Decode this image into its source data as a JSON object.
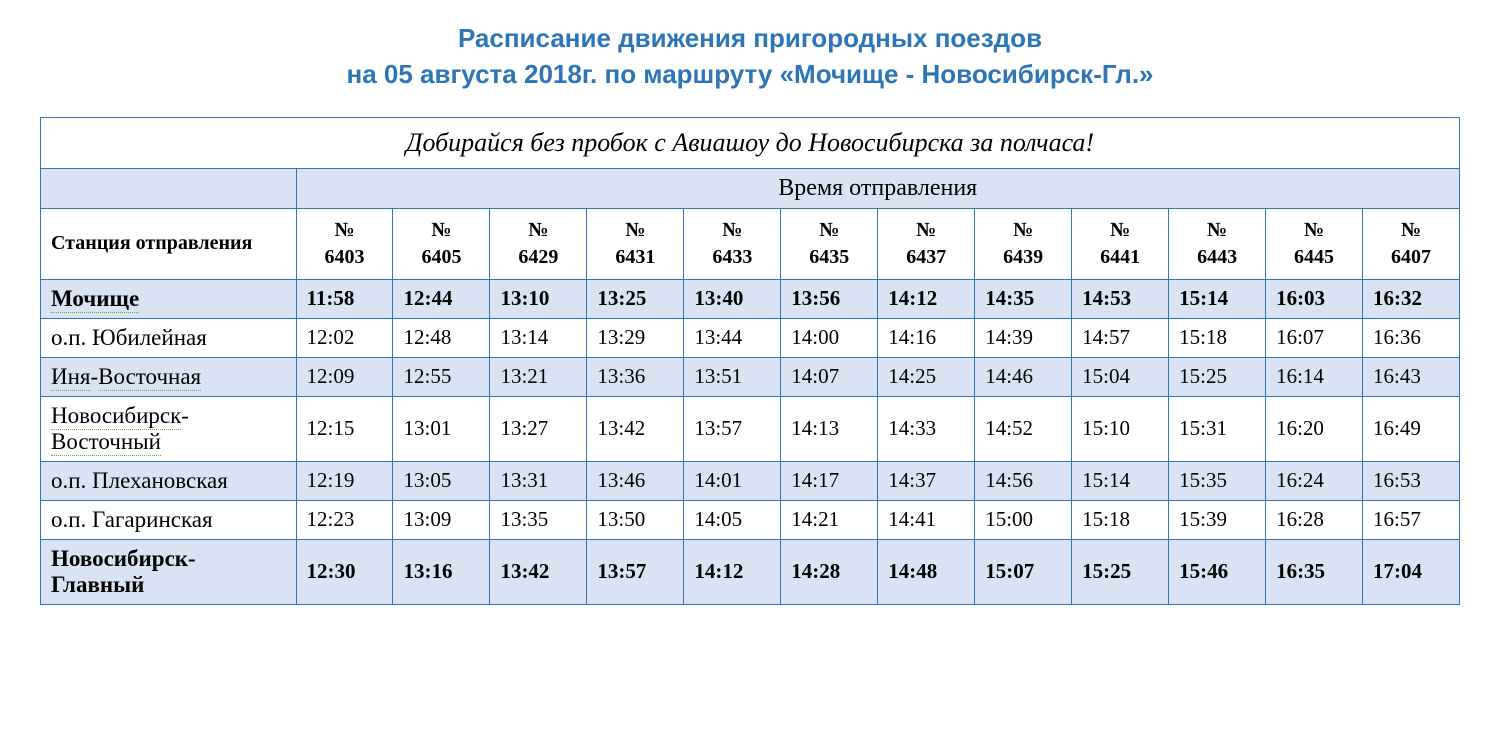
{
  "title_line1": "Расписание движения пригородных поездов",
  "title_line2": "на 05 августа 2018г. по маршруту «Мочище - Новосибирск-Гл.»",
  "banner": "Добирайся без пробок с Авиашоу до Новосибирска за полчаса!",
  "departure_header": "Время отправления",
  "station_header": "Станция отправления",
  "train_prefix": "№",
  "trains": [
    "6403",
    "6405",
    "6429",
    "6431",
    "6433",
    "6435",
    "6437",
    "6439",
    "6441",
    "6443",
    "6445",
    "6407"
  ],
  "stations": [
    {
      "name": "Мочище",
      "bold": true,
      "dotted": true,
      "times": [
        "11:58",
        "12:44",
        "13:10",
        "13:25",
        "13:40",
        "13:56",
        "14:12",
        "14:35",
        "14:53",
        "15:14",
        "16:03",
        "16:32"
      ]
    },
    {
      "name": "о.п. Юбилейная",
      "bold": false,
      "dotted": false,
      "times": [
        "12:02",
        "12:48",
        "13:14",
        "13:29",
        "13:44",
        "14:00",
        "14:16",
        "14:39",
        "14:57",
        "15:18",
        "16:07",
        "16:36"
      ]
    },
    {
      "name": "Иня-Восточная",
      "bold": false,
      "dotted": true,
      "times": [
        "12:09",
        "12:55",
        "13:21",
        "13:36",
        "13:51",
        "14:07",
        "14:25",
        "14:46",
        "15:04",
        "15:25",
        "16:14",
        "16:43"
      ]
    },
    {
      "name": "Новосибирск-Восточный",
      "bold": false,
      "dotted": true,
      "times": [
        "12:15",
        "13:01",
        "13:27",
        "13:42",
        "13:57",
        "14:13",
        "14:33",
        "14:52",
        "15:10",
        "15:31",
        "16:20",
        "16:49"
      ]
    },
    {
      "name": "о.п. Плехановская",
      "bold": false,
      "dotted": false,
      "times": [
        "12:19",
        "13:05",
        "13:31",
        "13:46",
        "14:01",
        "14:17",
        "14:37",
        "14:56",
        "15:14",
        "15:35",
        "16:24",
        "16:53"
      ]
    },
    {
      "name": "о.п. Гагаринская",
      "bold": false,
      "dotted": false,
      "times": [
        "12:23",
        "13:09",
        "13:35",
        "13:50",
        "14:05",
        "14:21",
        "14:41",
        "15:00",
        "15:18",
        "15:39",
        "16:28",
        "16:57"
      ]
    },
    {
      "name": "Новосибирск-Главный",
      "bold": true,
      "dotted": false,
      "times": [
        "12:30",
        "13:16",
        "13:42",
        "13:57",
        "14:12",
        "14:28",
        "14:48",
        "15:07",
        "15:25",
        "15:46",
        "16:35",
        "17:04"
      ]
    }
  ],
  "colors": {
    "title": "#2e75b6",
    "border": "#2e75b6",
    "header_bg": "#dae3f3",
    "dotted_underline": "#70ad47"
  }
}
